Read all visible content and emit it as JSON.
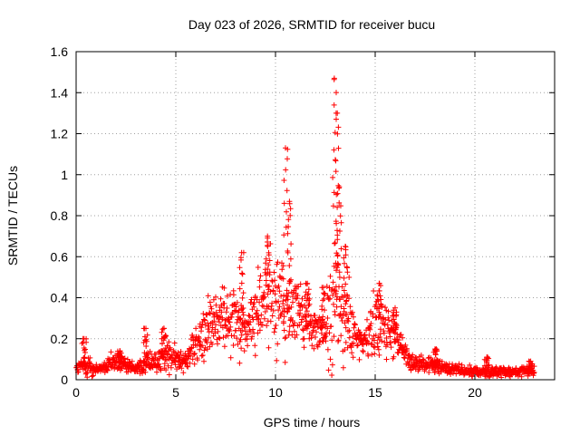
{
  "chart_data": {
    "type": "scatter",
    "title": "Day 023 of 2026, SRMTID for receiver bucu",
    "xlabel": "GPS time / hours",
    "ylabel": "SRMTID / TECUs",
    "xlim": [
      0,
      24
    ],
    "ylim": [
      0,
      1.6
    ],
    "xticks": [
      0,
      5,
      10,
      15,
      20
    ],
    "xtick_labels": [
      "0",
      "5",
      "10",
      "15",
      "20"
    ],
    "yticks": [
      0,
      0.2,
      0.4,
      0.6,
      0.8,
      1,
      1.2,
      1.4,
      1.6
    ],
    "ytick_labels": [
      "0",
      "0.2",
      "0.4",
      "0.6",
      "0.8",
      "1",
      "1.2",
      "1.4",
      "1.6"
    ],
    "grid": true,
    "marker": "+",
    "color": "#ff0000",
    "envelope": {
      "description": "approximate median and spread of the point cloud by hour",
      "x": [
        0,
        0.5,
        1,
        1.5,
        2,
        2.5,
        3,
        3.5,
        4,
        4.5,
        5,
        5.5,
        6,
        6.5,
        7,
        7.5,
        8,
        8.5,
        9,
        9.5,
        10,
        10.5,
        11,
        11.5,
        12,
        12.5,
        13,
        13.5,
        14,
        14.5,
        15,
        15.5,
        16,
        16.5,
        17,
        17.5,
        18,
        18.5,
        19,
        19.5,
        20,
        20.5,
        21,
        21.5,
        22,
        22.5,
        23
      ],
      "median": [
        0.05,
        0.07,
        0.05,
        0.06,
        0.09,
        0.07,
        0.06,
        0.08,
        0.09,
        0.12,
        0.1,
        0.11,
        0.16,
        0.25,
        0.28,
        0.3,
        0.32,
        0.22,
        0.32,
        0.42,
        0.4,
        0.32,
        0.36,
        0.28,
        0.25,
        0.22,
        0.45,
        0.3,
        0.2,
        0.18,
        0.3,
        0.26,
        0.2,
        0.12,
        0.08,
        0.07,
        0.07,
        0.06,
        0.05,
        0.04,
        0.04,
        0.04,
        0.04,
        0.04,
        0.04,
        0.04,
        0.04
      ],
      "spread": [
        0.02,
        0.06,
        0.02,
        0.03,
        0.05,
        0.03,
        0.02,
        0.06,
        0.04,
        0.08,
        0.04,
        0.05,
        0.1,
        0.12,
        0.14,
        0.14,
        0.16,
        0.08,
        0.18,
        0.2,
        0.22,
        0.2,
        0.16,
        0.1,
        0.1,
        0.1,
        0.4,
        0.22,
        0.1,
        0.08,
        0.14,
        0.12,
        0.1,
        0.06,
        0.04,
        0.03,
        0.04,
        0.03,
        0.02,
        0.02,
        0.02,
        0.02,
        0.03,
        0.02,
        0.02,
        0.02,
        0.02
      ]
    },
    "peaks": [
      {
        "x": 0.4,
        "y": 0.2
      },
      {
        "x": 2.2,
        "y": 0.14
      },
      {
        "x": 3.5,
        "y": 0.25
      },
      {
        "x": 4.4,
        "y": 0.25
      },
      {
        "x": 8.3,
        "y": 0.62
      },
      {
        "x": 9.6,
        "y": 0.7
      },
      {
        "x": 10.5,
        "y": 1.13
      },
      {
        "x": 10.7,
        "y": 0.87
      },
      {
        "x": 11.6,
        "y": 0.47
      },
      {
        "x": 12.4,
        "y": 0.45
      },
      {
        "x": 12.95,
        "y": 1.47
      },
      {
        "x": 13.1,
        "y": 1.3
      },
      {
        "x": 13.2,
        "y": 0.94
      },
      {
        "x": 13.5,
        "y": 0.65
      },
      {
        "x": 15.2,
        "y": 0.47
      },
      {
        "x": 16.0,
        "y": 0.35
      },
      {
        "x": 18.0,
        "y": 0.15
      },
      {
        "x": 20.6,
        "y": 0.11
      },
      {
        "x": 22.8,
        "y": 0.09
      }
    ],
    "x_range_of_data": [
      0,
      23
    ]
  }
}
